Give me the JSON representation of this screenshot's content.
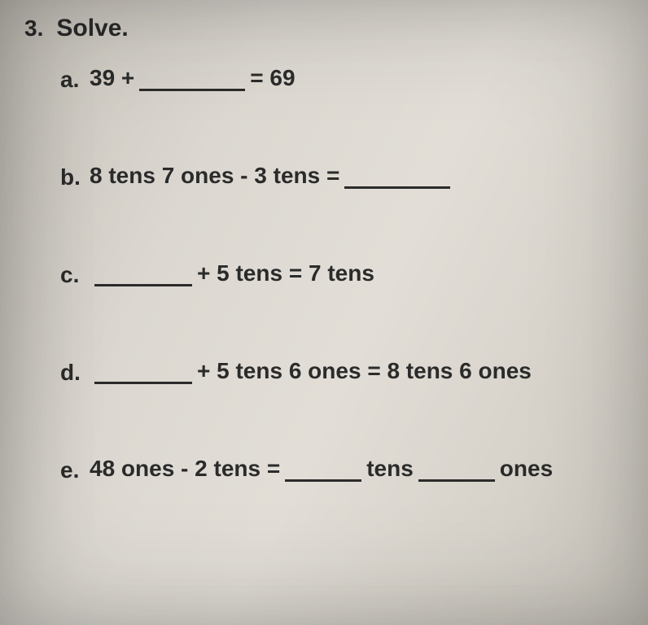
{
  "question": {
    "number": "3.",
    "prompt": "Solve."
  },
  "items": {
    "a": {
      "label": "a.",
      "left": "39 +",
      "right": "= 69",
      "blank_width": "w-lg"
    },
    "b": {
      "label": "b.",
      "left": "8 tens 7 ones - 3 tens =",
      "blank_width": "w-lg"
    },
    "c": {
      "label": "c.",
      "right": "+ 5 tens = 7 tens",
      "blank_width": "w-md"
    },
    "d": {
      "label": "d.",
      "right": "+ 5 tens 6 ones = 8 tens 6 ones",
      "blank_width": "w-md"
    },
    "e": {
      "label": "e.",
      "left": "48 ones - 2 tens =",
      "mid": "tens",
      "right": "ones",
      "blank_width": "w-sm"
    }
  },
  "colors": {
    "text": "#2b2b2b",
    "paper_light": "#e2ded7",
    "paper_dark": "#c7c3bb"
  },
  "typography": {
    "family": "Comic Sans MS",
    "heading_size_pt": 22,
    "body_size_pt": 21,
    "weight": "bold"
  }
}
